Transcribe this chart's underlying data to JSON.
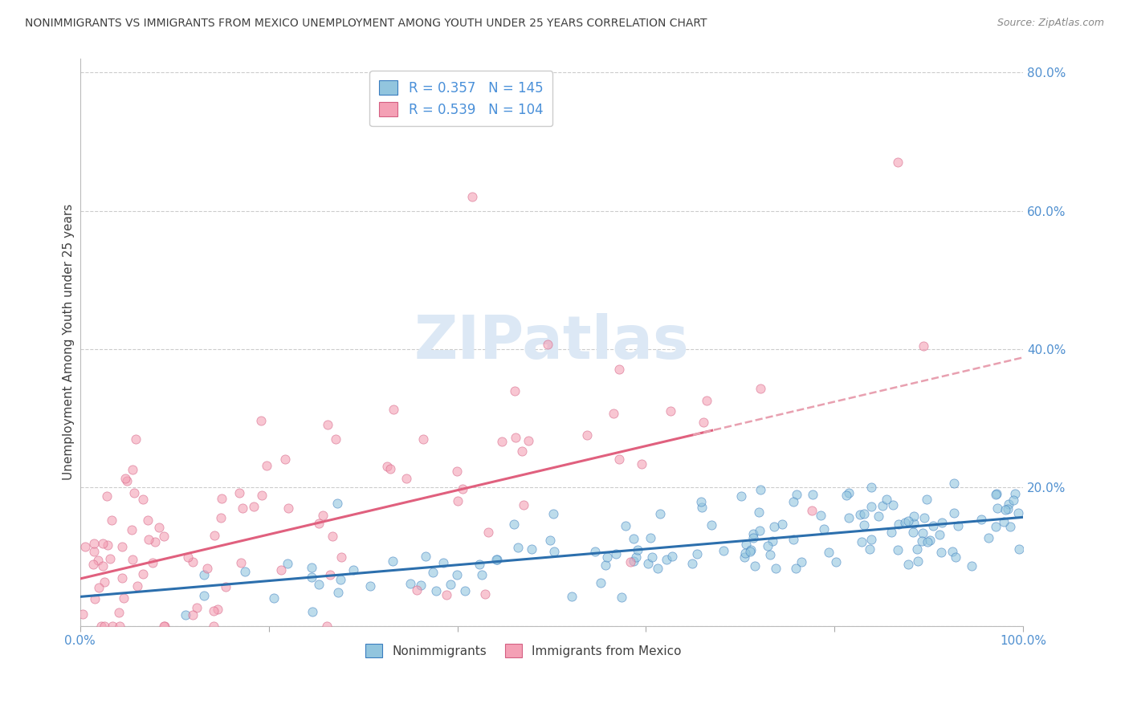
{
  "title": "NONIMMIGRANTS VS IMMIGRANTS FROM MEXICO UNEMPLOYMENT AMONG YOUTH UNDER 25 YEARS CORRELATION CHART",
  "source": "Source: ZipAtlas.com",
  "ylabel": "Unemployment Among Youth under 25 years",
  "xlim": [
    0.0,
    1.0
  ],
  "ylim": [
    0.0,
    0.82
  ],
  "ytick_values": [
    0.0,
    0.2,
    0.4,
    0.6,
    0.8
  ],
  "xtick_values": [
    0.0,
    0.2,
    0.4,
    0.6,
    0.8,
    1.0
  ],
  "xtick_labels": [
    "0.0%",
    "",
    "",
    "",
    "",
    "100.0%"
  ],
  "blue_R": 0.357,
  "blue_N": 145,
  "pink_R": 0.539,
  "pink_N": 104,
  "blue_color": "#92c5de",
  "pink_color": "#f4a0b5",
  "blue_edge_color": "#3a7dbf",
  "pink_edge_color": "#d45f82",
  "blue_line_color": "#2c6fad",
  "pink_line_color": "#e0607e",
  "pink_dash_color": "#e8a0b0",
  "title_color": "#404040",
  "source_color": "#888888",
  "axis_label_color": "#5090d0",
  "legend_text_color": "#4a90d9",
  "watermark_color": "#dce8f5",
  "background_color": "#ffffff",
  "grid_color": "#cccccc",
  "blue_slope": 0.115,
  "blue_intercept": 0.042,
  "pink_slope": 0.32,
  "pink_intercept": 0.068,
  "pink_line_end_x": 0.67,
  "seed": 42
}
